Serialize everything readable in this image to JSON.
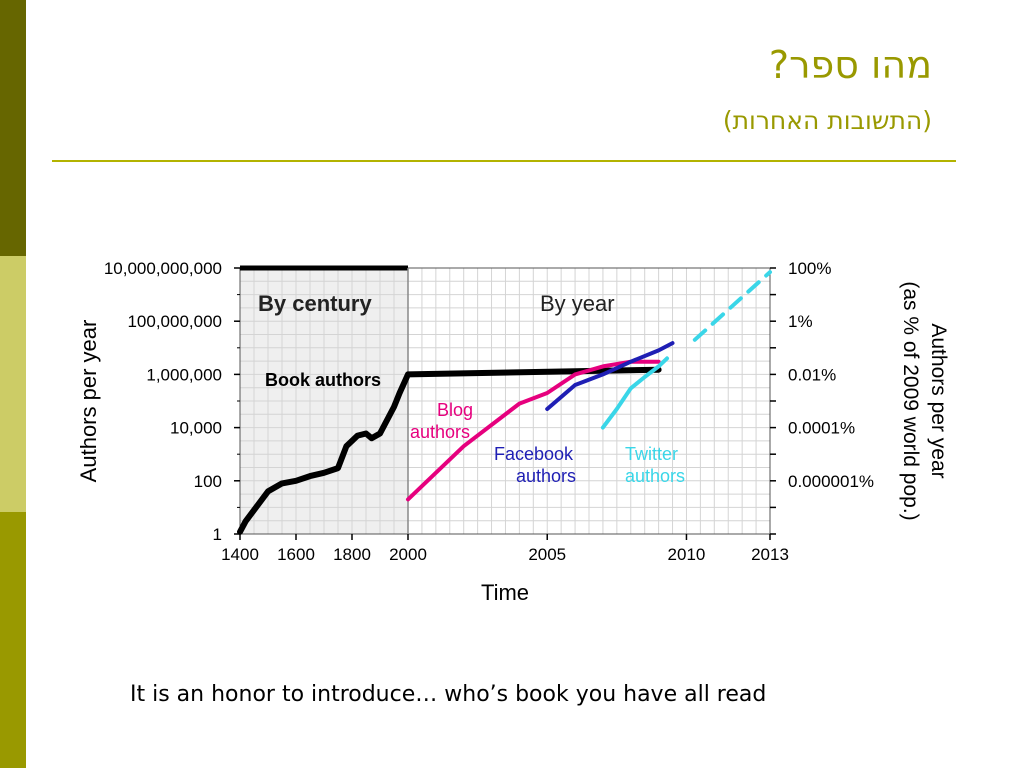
{
  "slide": {
    "title": "מהו ספר?",
    "subtitle": "(התשובות האחרות)",
    "caption": "It is an honor to introduce… who’s book you have all read"
  },
  "colors": {
    "sidebar_dark": "#666600",
    "sidebar_light": "#cccc66",
    "sidebar_mid": "#999900",
    "title": "#999900",
    "book": "#000000",
    "blog": "#e6007e",
    "facebook": "#1f1fb4",
    "twitter": "#3ad6e8"
  },
  "chart_data": {
    "type": "line",
    "xlabel": "Time",
    "ylabel": "Authors per year",
    "y2label_line1": "Authors per year",
    "y2label_line2": "(as % of 2009 world pop.)",
    "yscale": "log",
    "ylim": [
      1,
      10000000000
    ],
    "y_ticks": [
      "10,000,000,000",
      "100,000,000",
      "1,000,000",
      "10,000",
      "100",
      "1"
    ],
    "y2_ticks": [
      "100%",
      "1%",
      "0.01%",
      "0.0001%",
      "0.000001%"
    ],
    "x_ticks_century": [
      "1400",
      "1600",
      "1800",
      "2000"
    ],
    "x_ticks_year": [
      "2005",
      "2010",
      "2013"
    ],
    "panel_labels": [
      "By century",
      "By year"
    ],
    "grid": true,
    "series": [
      {
        "name": "Book authors",
        "color": "#000000",
        "points": [
          [
            1400,
            1.2
          ],
          [
            1420,
            3
          ],
          [
            1500,
            40
          ],
          [
            1550,
            80
          ],
          [
            1600,
            100
          ],
          [
            1650,
            150
          ],
          [
            1700,
            200
          ],
          [
            1750,
            300
          ],
          [
            1780,
            2000
          ],
          [
            1820,
            5000
          ],
          [
            1850,
            6000
          ],
          [
            1870,
            4000
          ],
          [
            1900,
            6000
          ],
          [
            1950,
            60000
          ],
          [
            1970,
            200000
          ],
          [
            2000,
            1000000
          ],
          [
            2009,
            1500000
          ]
        ]
      },
      {
        "name": "Blog authors",
        "color": "#e6007e",
        "points": [
          [
            2000,
            20
          ],
          [
            2002,
            2000
          ],
          [
            2004,
            80000
          ],
          [
            2005,
            200000
          ],
          [
            2006,
            1000000
          ],
          [
            2007,
            2000000
          ],
          [
            2008,
            3000000
          ],
          [
            2009,
            3000000
          ]
        ]
      },
      {
        "name": "Facebook authors",
        "color": "#1f1fb4",
        "points": [
          [
            2005,
            50000
          ],
          [
            2006,
            400000
          ],
          [
            2007,
            1000000
          ],
          [
            2008,
            3000000
          ],
          [
            2009,
            8000000
          ],
          [
            2009.5,
            15000000
          ]
        ]
      },
      {
        "name": "Twitter authors",
        "color": "#3ad6e8",
        "points": [
          [
            2007,
            10000
          ],
          [
            2007.5,
            50000
          ],
          [
            2008,
            300000
          ],
          [
            2008.5,
            800000
          ],
          [
            2009,
            2000000
          ],
          [
            2009.3,
            4000000
          ]
        ]
      },
      {
        "name": "Twitter projection",
        "color": "#3ad6e8",
        "dashed": true,
        "points": [
          [
            2010.3,
            20000000
          ],
          [
            2013,
            7000000000
          ]
        ]
      }
    ],
    "annotations": [
      {
        "text": "Book authors",
        "color": "#000000"
      },
      {
        "text": "Blog",
        "text2": "authors",
        "color": "#e6007e"
      },
      {
        "text": "Facebook",
        "text2": "authors",
        "color": "#1f1fb4"
      },
      {
        "text": "Twitter",
        "text2": "authors",
        "color": "#3ad6e8"
      }
    ]
  }
}
